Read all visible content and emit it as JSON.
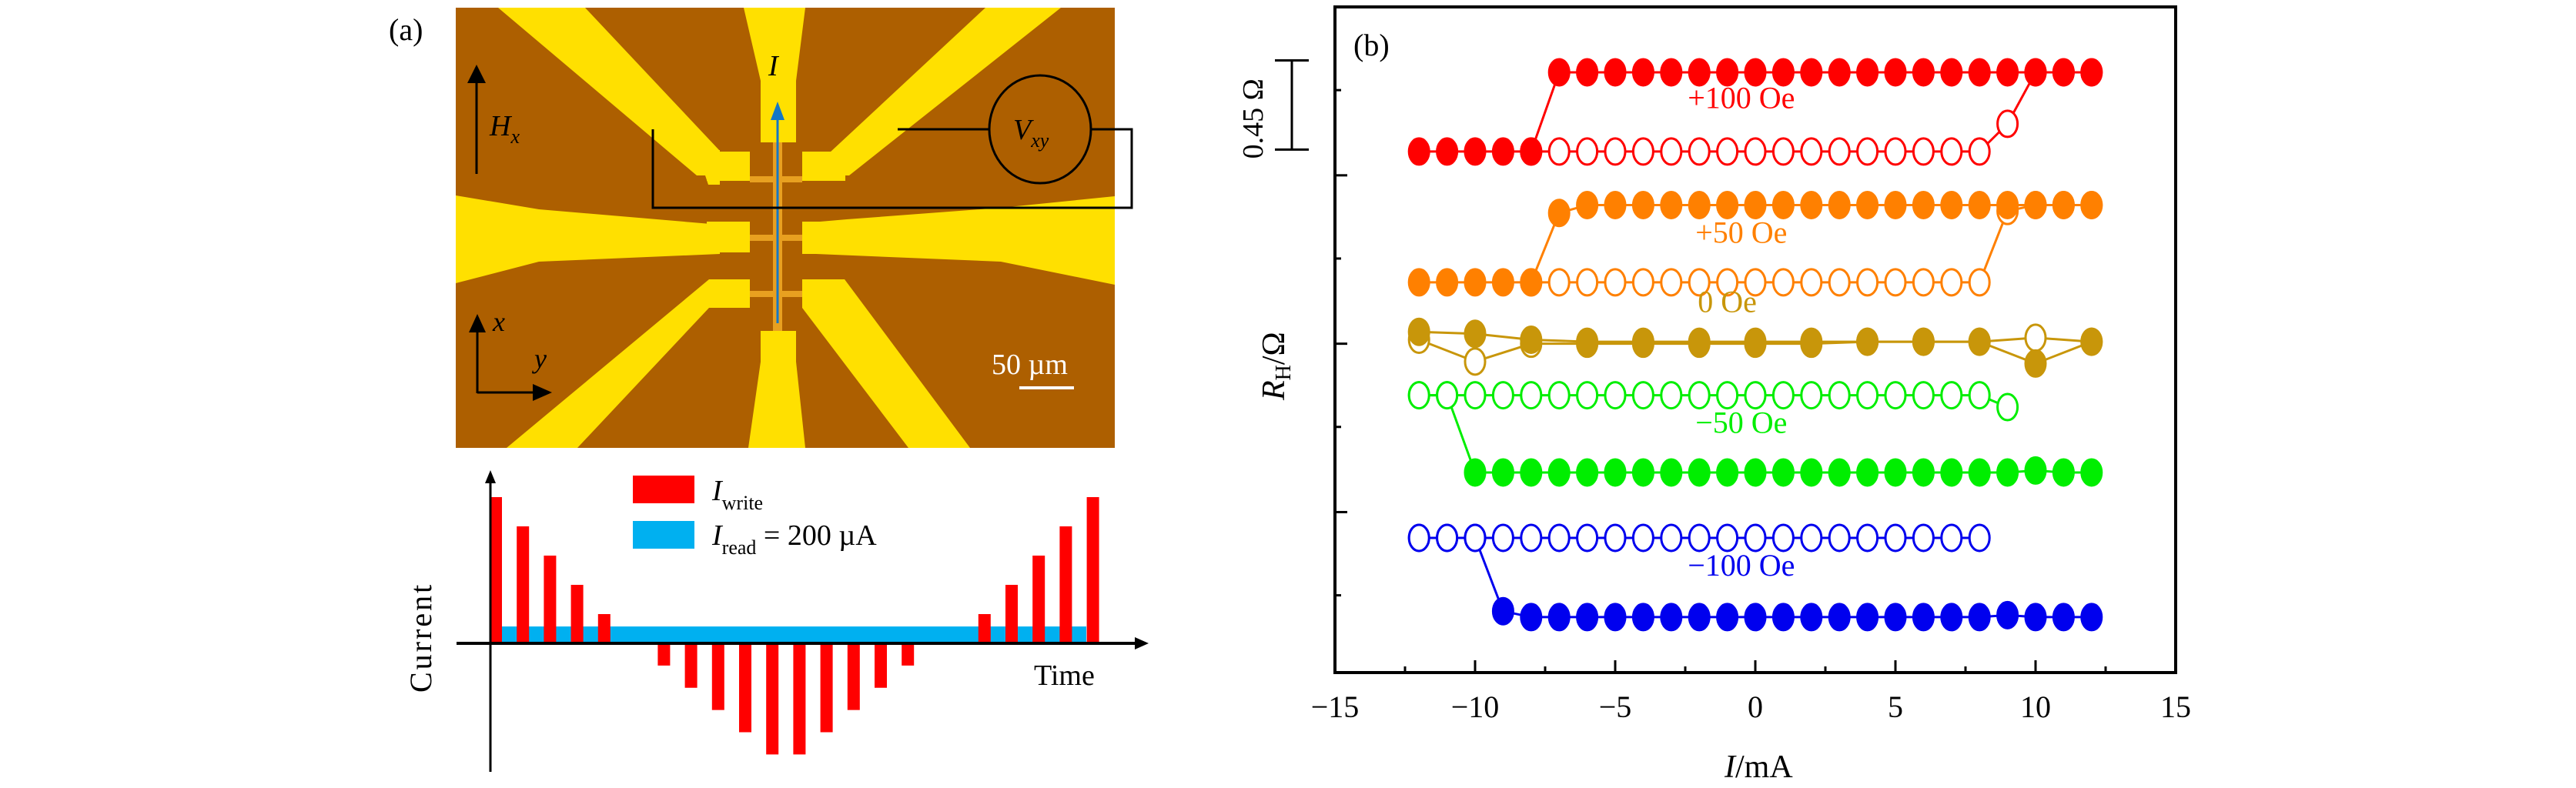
{
  "panel_a": {
    "label": "(a)",
    "micrograph": {
      "current_label": "I",
      "field_label_main": "H",
      "field_label_sub": "x",
      "voltmeter_label_main": "V",
      "voltmeter_label_sub": "xy",
      "axis_x_label": "x",
      "axis_y_label": "y",
      "scale_bar_label": "50 µm",
      "colors": {
        "substrate": "#ad5f00",
        "electrode": "#ffe000",
        "hallbar": "#e8a020",
        "current_arrow": "#1477c6"
      }
    },
    "pulse_diagram": {
      "ylabel": "Current",
      "xlabel": "Time",
      "legend": [
        {
          "main": "I",
          "sub": "write",
          "suffix": "",
          "color": "#ff0000"
        },
        {
          "main": "I",
          "sub": "read",
          "suffix": " = 200 µA",
          "color": "#00b0f0"
        }
      ],
      "read_level": 0.16,
      "write_pulses": [
        1.0,
        0.8,
        0.6,
        0.4,
        0.2,
        -0.2,
        -0.4,
        -0.6,
        -0.8,
        -1.0,
        -1.0,
        -0.8,
        -0.6,
        -0.4,
        -0.2,
        0.2,
        0.4,
        0.6,
        0.8,
        1.0
      ]
    }
  },
  "chart_data": {
    "type": "line",
    "panel_label": "(b)",
    "title": "",
    "xlabel": "I/mA",
    "xlabel_main": "I",
    "xlabel_unit": "/mA",
    "ylabel_main": "R",
    "ylabel_sub": "H",
    "ylabel_unit": "/Ω",
    "xlim": [
      -15,
      15
    ],
    "ylim": [
      0,
      3.36
    ],
    "xticks": [
      -15,
      -10,
      -5,
      0,
      5,
      10,
      15
    ],
    "xtick_labels": [
      "−15",
      "−10",
      "−5",
      "0",
      "5",
      "10",
      "15"
    ],
    "xminor": [
      -12.5,
      -7.5,
      -2.5,
      2.5,
      7.5,
      12.5
    ],
    "yticks": [
      2.94,
      2.51,
      2.09,
      1.66,
      1.24,
      0.81,
      0.39
    ],
    "ytick_labels_shown": false,
    "grid": false,
    "scale_bar": {
      "label": "0.45 Ω",
      "value": 0.45,
      "from": 2.64
    },
    "series": [
      {
        "name": "+100 Oe",
        "color": "#ff0000",
        "sweep_up": {
          "x": [
            -12,
            -11,
            -10,
            -9,
            -8,
            -7,
            -6,
            -5,
            -4,
            -3,
            -2,
            -1,
            0,
            1,
            2,
            3,
            4,
            5,
            6,
            7,
            8,
            9,
            10,
            11,
            12
          ],
          "y": [
            2.63,
            2.63,
            2.63,
            2.63,
            2.63,
            3.03,
            3.03,
            3.03,
            3.03,
            3.03,
            3.03,
            3.03,
            3.03,
            3.03,
            3.03,
            3.03,
            3.03,
            3.03,
            3.03,
            3.03,
            3.03,
            3.03,
            3.03,
            3.03,
            3.03
          ],
          "filled": true
        },
        "sweep_down": {
          "x": [
            12,
            11,
            10,
            9,
            8,
            7,
            6,
            5,
            4,
            3,
            2,
            1,
            0,
            -1,
            -2,
            -3,
            -4,
            -5,
            -6,
            -7,
            -8
          ],
          "y": [
            3.03,
            3.03,
            3.03,
            2.77,
            2.63,
            2.63,
            2.63,
            2.63,
            2.63,
            2.63,
            2.63,
            2.63,
            2.63,
            2.63,
            2.63,
            2.63,
            2.63,
            2.63,
            2.63,
            2.63,
            2.63
          ],
          "filled": false
        }
      },
      {
        "name": "+50 Oe",
        "color": "#ff8000",
        "sweep_up": {
          "x": [
            -12,
            -11,
            -10,
            -9,
            -8,
            -7,
            -6,
            -5,
            -4,
            -3,
            -2,
            -1,
            0,
            1,
            2,
            3,
            4,
            5,
            6,
            7,
            8,
            9,
            10,
            11,
            12
          ],
          "y": [
            1.97,
            1.97,
            1.97,
            1.97,
            1.97,
            2.32,
            2.36,
            2.36,
            2.36,
            2.36,
            2.36,
            2.36,
            2.36,
            2.36,
            2.36,
            2.36,
            2.36,
            2.36,
            2.36,
            2.36,
            2.36,
            2.36,
            2.36,
            2.36,
            2.36
          ],
          "filled": true
        },
        "sweep_down": {
          "x": [
            12,
            11,
            10,
            9,
            8,
            7,
            6,
            5,
            4,
            3,
            2,
            1,
            0,
            -1,
            -2,
            -3,
            -4,
            -5,
            -6,
            -7,
            -8
          ],
          "y": [
            2.36,
            2.36,
            2.36,
            2.33,
            1.97,
            1.97,
            1.97,
            1.97,
            1.97,
            1.97,
            1.97,
            1.97,
            1.97,
            1.97,
            1.97,
            1.97,
            1.97,
            1.97,
            1.97,
            1.97,
            1.97
          ],
          "filled": false
        }
      },
      {
        "name": "0 Oe",
        "color": "#c8960a",
        "sweep_up": {
          "x": [
            -12,
            -10,
            -8,
            -6,
            -4,
            -2,
            0,
            2,
            4,
            6,
            8,
            10,
            12
          ],
          "y": [
            1.72,
            1.71,
            1.68,
            1.67,
            1.67,
            1.67,
            1.67,
            1.67,
            1.67,
            1.67,
            1.67,
            1.56,
            1.67
          ],
          "filled": true
        },
        "sweep_down": {
          "x": [
            12,
            10,
            8,
            6,
            4,
            2,
            0,
            -2,
            -4,
            -6,
            -8,
            -10,
            -12
          ],
          "y": [
            1.67,
            1.69,
            1.67,
            1.67,
            1.67,
            1.66,
            1.66,
            1.66,
            1.66,
            1.66,
            1.66,
            1.57,
            1.68
          ],
          "filled": false
        }
      },
      {
        "name": "−50 Oe",
        "color": "#00ee00",
        "sweep_up": {
          "x": [
            -12,
            -11,
            -10,
            -9,
            -8,
            -7,
            -6,
            -5,
            -4,
            -3,
            -2,
            -1,
            0,
            1,
            2,
            3,
            4,
            5,
            6,
            7,
            8,
            9
          ],
          "y": [
            1.4,
            1.4,
            1.4,
            1.4,
            1.4,
            1.4,
            1.4,
            1.4,
            1.4,
            1.4,
            1.4,
            1.4,
            1.4,
            1.4,
            1.4,
            1.4,
            1.4,
            1.4,
            1.4,
            1.4,
            1.4,
            1.34
          ],
          "filled": false
        },
        "sweep_down": {
          "x": [
            12,
            11,
            10,
            9,
            8,
            7,
            6,
            5,
            4,
            3,
            2,
            1,
            0,
            -1,
            -2,
            -3,
            -4,
            -5,
            -6,
            -7,
            -8,
            -9,
            -10,
            -11,
            -12
          ],
          "y": [
            1.01,
            1.01,
            1.02,
            1.01,
            1.01,
            1.01,
            1.01,
            1.01,
            1.01,
            1.01,
            1.01,
            1.01,
            1.01,
            1.01,
            1.01,
            1.01,
            1.01,
            1.01,
            1.01,
            1.01,
            1.01,
            1.01,
            1.01,
            1.4,
            1.4
          ],
          "filled": true
        }
      },
      {
        "name": "−100 Oe",
        "color": "#0000ee",
        "sweep_up": {
          "x": [
            -12,
            -11,
            -10,
            -9,
            -8,
            -7,
            -6,
            -5,
            -4,
            -3,
            -2,
            -1,
            0,
            1,
            2,
            3,
            4,
            5,
            6,
            7,
            8
          ],
          "y": [
            0.68,
            0.68,
            0.68,
            0.68,
            0.68,
            0.68,
            0.68,
            0.68,
            0.68,
            0.68,
            0.68,
            0.68,
            0.68,
            0.68,
            0.68,
            0.68,
            0.68,
            0.68,
            0.68,
            0.68,
            0.68
          ],
          "filled": false
        },
        "sweep_down": {
          "x": [
            12,
            11,
            10,
            9,
            8,
            7,
            6,
            5,
            4,
            3,
            2,
            1,
            0,
            -1,
            -2,
            -3,
            -4,
            -5,
            -6,
            -7,
            -8,
            -9,
            -10,
            -11,
            -12
          ],
          "y": [
            0.28,
            0.28,
            0.28,
            0.29,
            0.28,
            0.28,
            0.28,
            0.28,
            0.28,
            0.28,
            0.28,
            0.28,
            0.28,
            0.28,
            0.28,
            0.28,
            0.28,
            0.28,
            0.28,
            0.28,
            0.28,
            0.31,
            0.68,
            0.68,
            0.68
          ],
          "filled": true
        }
      }
    ],
    "annotations": [
      {
        "text": "+100 Oe",
        "x": -0.5,
        "y": 2.85,
        "color": "#ff0000"
      },
      {
        "text": "+50 Oe",
        "x": -0.5,
        "y": 2.17,
        "color": "#ff8000"
      },
      {
        "text": "0 Oe",
        "x": -1.0,
        "y": 1.82,
        "color": "#c8960a"
      },
      {
        "text": "−50 Oe",
        "x": -0.5,
        "y": 1.21,
        "color": "#00ee00"
      },
      {
        "text": "−100 Oe",
        "x": -0.5,
        "y": 0.49,
        "color": "#0000ee"
      }
    ]
  }
}
